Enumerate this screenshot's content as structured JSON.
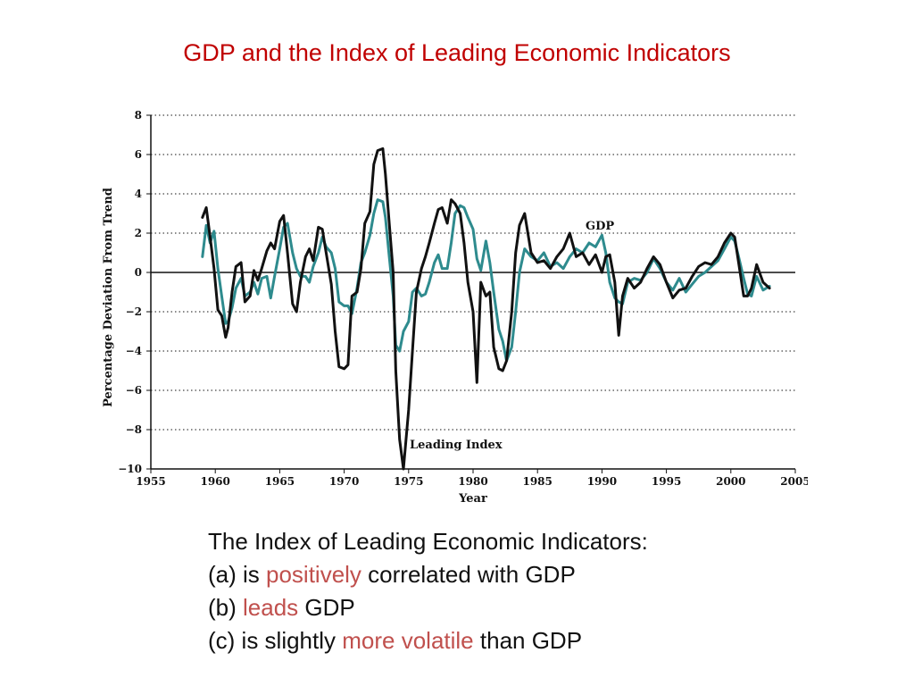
{
  "slide": {
    "title": "GDP and the Index of Leading Economic Indicators"
  },
  "chart_data": {
    "type": "line",
    "title": "",
    "xlabel": "Year",
    "ylabel": "Percentage Deviation From Trend",
    "xlim": [
      1955,
      2005
    ],
    "ylim": [
      -10,
      8
    ],
    "x_ticks": [
      1955,
      1960,
      1965,
      1970,
      1975,
      1980,
      1985,
      1990,
      1995,
      2000,
      2005
    ],
    "y_ticks": [
      8,
      6,
      4,
      2,
      0,
      -2,
      -4,
      -6,
      -8,
      -10
    ],
    "y_tick_labels": [
      "8",
      "6",
      "4",
      "2",
      "0",
      "−2",
      "−4",
      "−6",
      "−8",
      "−10"
    ],
    "grid": "horizontal dotted",
    "colors": {
      "gdp": "#2e8b8e",
      "leading": "#111111",
      "grid": "#444444"
    },
    "series": [
      {
        "name": "GDP",
        "annotation": "GDP",
        "x": [
          1959,
          1959.3,
          1959.6,
          1959.9,
          1960.2,
          1960.5,
          1960.8,
          1961.0,
          1961.3,
          1961.6,
          1962,
          1962.3,
          1962.7,
          1963,
          1963.3,
          1963.6,
          1964,
          1964.3,
          1964.6,
          1965,
          1965.3,
          1965.6,
          1966,
          1966.3,
          1966.6,
          1967,
          1967.3,
          1967.6,
          1968,
          1968.3,
          1968.6,
          1969,
          1969.3,
          1969.6,
          1970,
          1970.3,
          1970.6,
          1971,
          1971.3,
          1971.6,
          1972,
          1972.3,
          1972.6,
          1973,
          1973.2,
          1973.5,
          1973.8,
          1974,
          1974.3,
          1974.6,
          1975,
          1975.3,
          1975.6,
          1976,
          1976.3,
          1976.6,
          1977,
          1977.3,
          1977.6,
          1978,
          1978.3,
          1978.6,
          1979,
          1979.3,
          1979.6,
          1980,
          1980.3,
          1980.6,
          1981,
          1981.3,
          1981.6,
          1982,
          1982.3,
          1982.6,
          1983,
          1983.3,
          1983.6,
          1984,
          1984.5,
          1985,
          1985.5,
          1986,
          1986.5,
          1987,
          1987.5,
          1988,
          1988.5,
          1989,
          1989.5,
          1990,
          1990.3,
          1990.6,
          1991,
          1991.3,
          1991.6,
          1992,
          1992.5,
          1993,
          1993.5,
          1994,
          1994.5,
          1995,
          1995.5,
          1996,
          1996.5,
          1997,
          1997.5,
          1998,
          1998.5,
          1999,
          1999.5,
          2000,
          2000.3,
          2000.6,
          2001,
          2001.3,
          2001.6,
          2002,
          2002.5,
          2003
        ],
        "values": [
          0.8,
          2.4,
          1.5,
          2.1,
          0.2,
          -1.2,
          -2.6,
          -2.5,
          -1.8,
          -0.8,
          -0.3,
          -1.2,
          -1.0,
          -0.5,
          -1.1,
          -0.3,
          -0.2,
          -1.3,
          -0.2,
          1.2,
          2.3,
          2.5,
          1.0,
          0.2,
          -0.2,
          -0.2,
          -0.5,
          0.3,
          1.0,
          1.8,
          1.3,
          1.0,
          0.2,
          -1.5,
          -1.7,
          -1.7,
          -2.1,
          -0.8,
          0.5,
          1.0,
          1.9,
          3.0,
          3.7,
          3.6,
          2.8,
          0.8,
          -1.2,
          -3.7,
          -4.0,
          -3.0,
          -2.5,
          -1.0,
          -0.8,
          -1.2,
          -1.1,
          -0.5,
          0.5,
          0.9,
          0.2,
          0.2,
          1.5,
          3.0,
          3.4,
          3.3,
          2.8,
          2.2,
          0.7,
          0.1,
          1.6,
          0.5,
          -1.0,
          -2.9,
          -3.5,
          -4.5,
          -3.8,
          -2.0,
          0.0,
          1.2,
          0.8,
          0.6,
          1.0,
          0.3,
          0.5,
          0.2,
          0.8,
          1.2,
          1.0,
          1.5,
          1.3,
          1.9,
          1.0,
          -0.5,
          -1.3,
          -1.5,
          -1.6,
          -0.5,
          -0.3,
          -0.4,
          0.0,
          0.7,
          0.2,
          -0.5,
          -0.9,
          -0.3,
          -1.0,
          -0.6,
          -0.2,
          0.0,
          0.3,
          0.6,
          1.2,
          1.8,
          1.6,
          0.8,
          -0.3,
          -1.1,
          -1.2,
          -0.2,
          -0.9,
          -0.7
        ]
      },
      {
        "name": "Leading Index",
        "annotation": "Leading Index",
        "x": [
          1959,
          1959.3,
          1959.6,
          1959.9,
          1960.2,
          1960.5,
          1960.8,
          1961.0,
          1961.3,
          1961.6,
          1962,
          1962.3,
          1962.7,
          1963,
          1963.3,
          1963.6,
          1964,
          1964.3,
          1964.6,
          1965,
          1965.3,
          1965.6,
          1966,
          1966.3,
          1966.6,
          1967,
          1967.3,
          1967.6,
          1968,
          1968.3,
          1968.6,
          1969,
          1969.3,
          1969.6,
          1970,
          1970.3,
          1970.6,
          1971,
          1971.3,
          1971.6,
          1972,
          1972.3,
          1972.6,
          1973,
          1973.2,
          1973.5,
          1973.8,
          1974,
          1974.3,
          1974.6,
          1975,
          1975.3,
          1975.6,
          1976,
          1976.3,
          1976.6,
          1977,
          1977.3,
          1977.6,
          1978,
          1978.3,
          1978.6,
          1979,
          1979.3,
          1979.6,
          1980,
          1980.3,
          1980.6,
          1981,
          1981.3,
          1981.6,
          1982,
          1982.3,
          1982.6,
          1983,
          1983.3,
          1983.6,
          1984,
          1984.5,
          1985,
          1985.5,
          1986,
          1986.5,
          1987,
          1987.5,
          1988,
          1988.5,
          1989,
          1989.5,
          1990,
          1990.3,
          1990.6,
          1991,
          1991.3,
          1991.6,
          1992,
          1992.5,
          1993,
          1993.5,
          1994,
          1994.5,
          1995,
          1995.5,
          1996,
          1996.5,
          1997,
          1997.5,
          1998,
          1998.5,
          1999,
          1999.5,
          2000,
          2000.3,
          2000.6,
          2001,
          2001.3,
          2001.6,
          2002,
          2002.5,
          2003
        ],
        "values": [
          2.8,
          3.3,
          1.8,
          0.2,
          -1.9,
          -2.2,
          -3.3,
          -2.8,
          -1.0,
          0.3,
          0.5,
          -1.5,
          -1.2,
          0.1,
          -0.4,
          0.2,
          1.1,
          1.5,
          1.2,
          2.6,
          2.9,
          1.0,
          -1.6,
          -2.0,
          -0.5,
          0.8,
          1.2,
          0.6,
          2.3,
          2.2,
          1.0,
          -0.6,
          -3.0,
          -4.8,
          -4.9,
          -4.7,
          -1.2,
          -1.0,
          0.2,
          2.5,
          3.1,
          5.5,
          6.2,
          6.3,
          5.0,
          2.5,
          0.0,
          -5.0,
          -8.5,
          -10.0,
          -7.0,
          -4.0,
          -1.0,
          0.2,
          0.8,
          1.5,
          2.5,
          3.2,
          3.3,
          2.5,
          3.7,
          3.5,
          3.0,
          1.5,
          -0.5,
          -2.0,
          -5.6,
          -0.5,
          -1.2,
          -1.0,
          -3.8,
          -4.9,
          -5.0,
          -4.5,
          -2.0,
          1.0,
          2.4,
          3.0,
          1.0,
          0.5,
          0.6,
          0.2,
          0.8,
          1.2,
          2.0,
          0.8,
          1.0,
          0.4,
          0.9,
          0.0,
          0.8,
          0.9,
          -0.5,
          -3.2,
          -1.2,
          -0.3,
          -0.8,
          -0.5,
          0.2,
          0.8,
          0.4,
          -0.5,
          -1.3,
          -0.9,
          -0.8,
          -0.2,
          0.3,
          0.5,
          0.4,
          0.8,
          1.5,
          2.0,
          1.8,
          0.5,
          -1.2,
          -1.2,
          -0.8,
          0.4,
          -0.5,
          -0.8
        ]
      }
    ]
  },
  "bullets": {
    "intro": "The Index of Leading Economic Indicators:",
    "a_prefix": "(a) is ",
    "a_highlight": "positively",
    "a_suffix": " correlated with GDP",
    "b_prefix": "(b) ",
    "b_highlight": "leads",
    "b_suffix": " GDP",
    "c_prefix": "(c) is slightly ",
    "c_highlight": "more volatile",
    "c_suffix": " than GDP"
  }
}
